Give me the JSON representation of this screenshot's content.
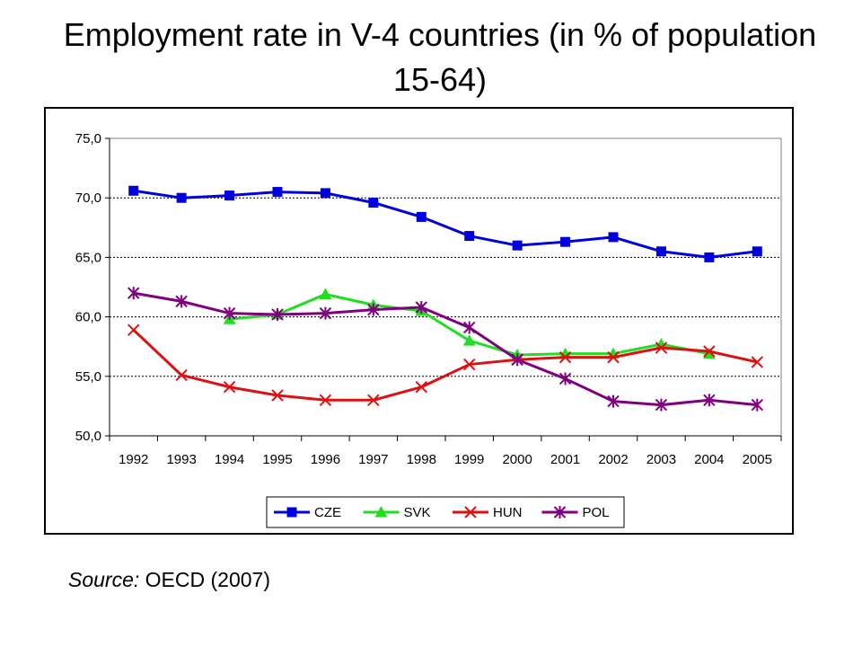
{
  "title": "Employment rate in V-4 countries (in % of population 15-64)",
  "source": {
    "label": "Source:",
    "text": " OECD (2007)"
  },
  "chart_data": {
    "type": "line",
    "title": "Employment rate in V-4 countries (in % of population 15-64)",
    "xlabel": "",
    "ylabel": "",
    "x": [
      "1992",
      "1993",
      "1994",
      "1995",
      "1996",
      "1997",
      "1998",
      "1999",
      "2000",
      "2001",
      "2002",
      "2003",
      "2004",
      "2005"
    ],
    "y_ticks": [
      "50,0",
      "55,0",
      "60,0",
      "65,0",
      "70,0",
      "75,0"
    ],
    "ylim": [
      50,
      75
    ],
    "grid": "horizontal dotted",
    "legend_position": "bottom",
    "series": [
      {
        "name": "CZE",
        "color": "#0000dd",
        "marker": "square",
        "values": [
          70.6,
          70.0,
          70.2,
          70.5,
          70.4,
          69.6,
          68.4,
          66.8,
          66.0,
          66.3,
          66.7,
          65.5,
          65.0,
          65.5
        ]
      },
      {
        "name": "SVK",
        "color": "#22dd22",
        "marker": "triangle",
        "values": [
          null,
          null,
          59.8,
          60.2,
          61.9,
          61.0,
          60.5,
          58.0,
          56.8,
          56.9,
          56.9,
          57.7,
          56.9,
          null
        ]
      },
      {
        "name": "HUN",
        "color": "#dd1111",
        "marker": "x",
        "values": [
          58.9,
          55.1,
          54.1,
          53.4,
          53.0,
          53.0,
          54.1,
          56.0,
          56.4,
          56.6,
          56.6,
          57.4,
          57.1,
          56.2
        ]
      },
      {
        "name": "POL",
        "color": "#800080",
        "marker": "star",
        "values": [
          62.0,
          61.3,
          60.3,
          60.2,
          60.3,
          60.6,
          60.8,
          59.1,
          56.4,
          54.8,
          52.9,
          52.6,
          53.0,
          52.6
        ]
      }
    ]
  }
}
